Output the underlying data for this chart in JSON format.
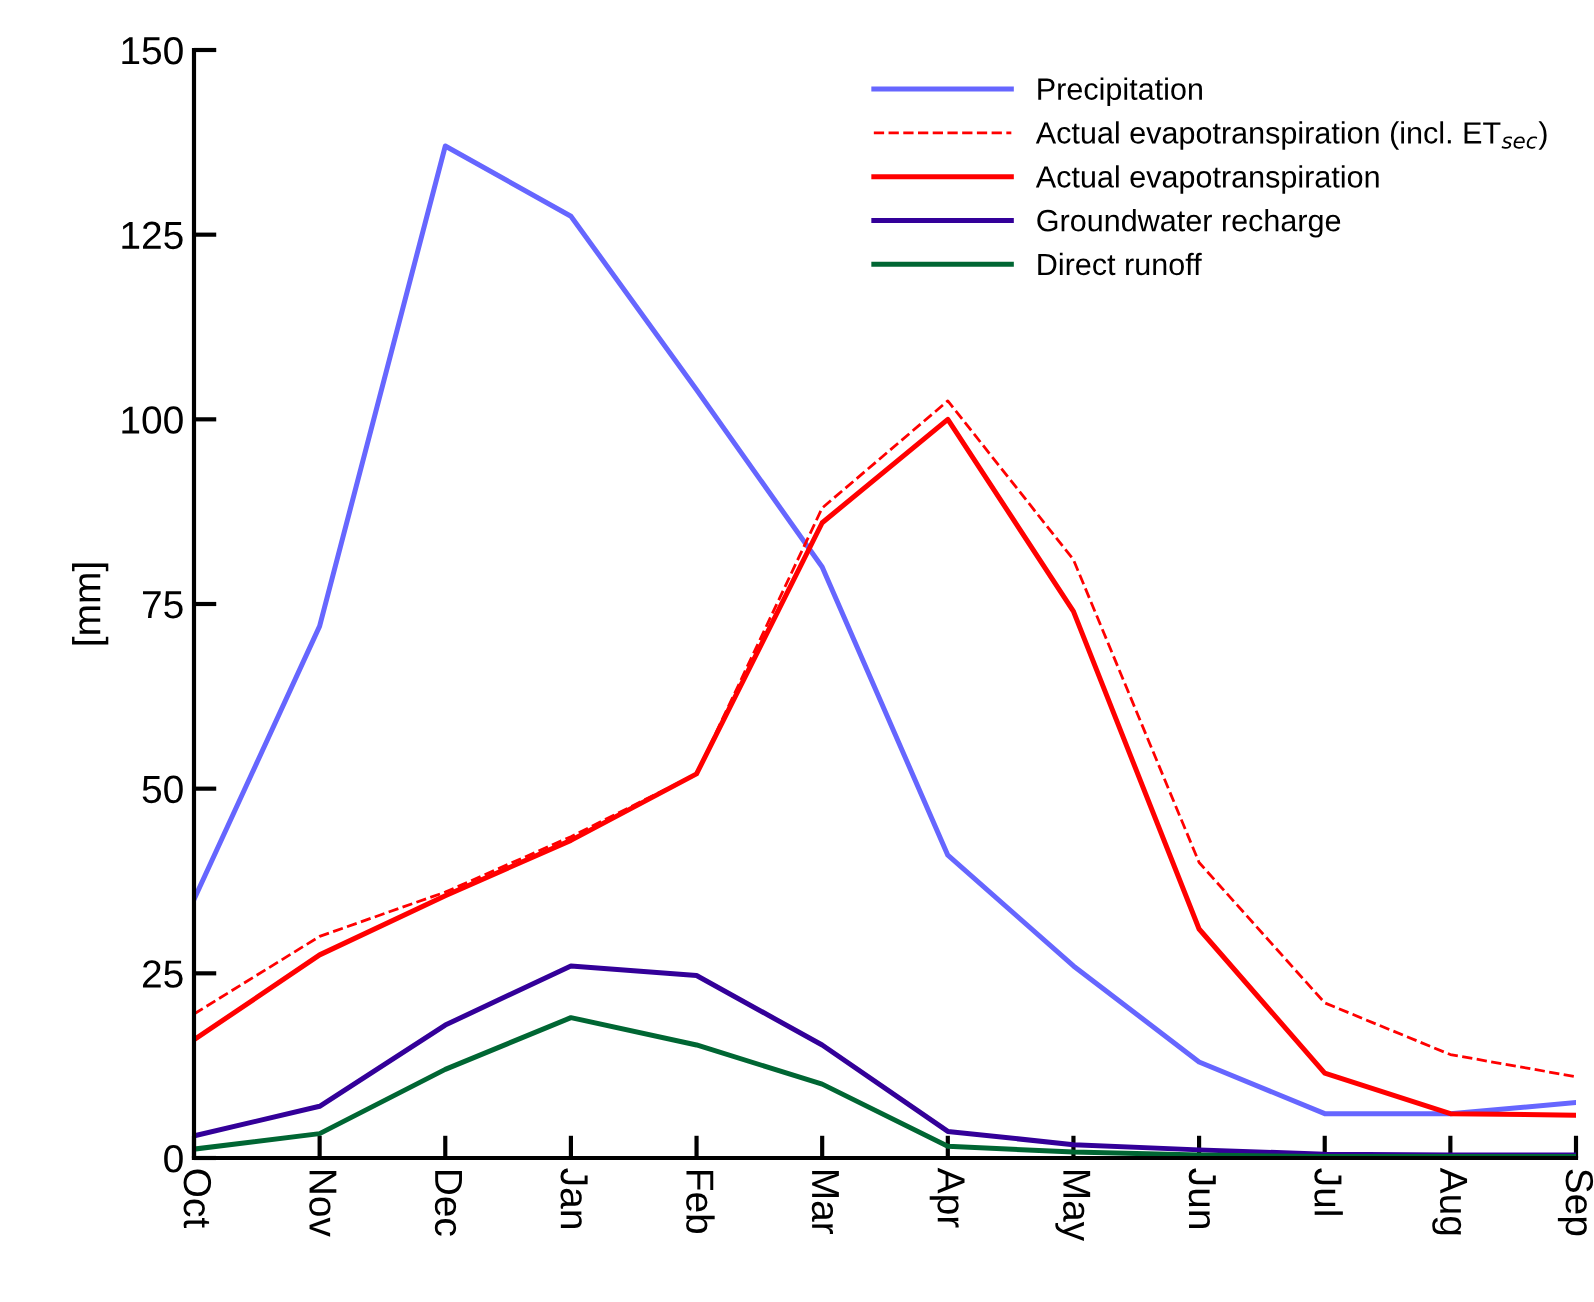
{
  "chart_data": {
    "type": "line",
    "ylabel": "[mm]",
    "categories": [
      "Oct",
      "Nov",
      "Dec",
      "Jan",
      "Feb",
      "Mar",
      "Apr",
      "May",
      "Jun",
      "Jul",
      "Aug",
      "Sep"
    ],
    "ylim": [
      0,
      150
    ],
    "yticks": [
      0,
      25,
      50,
      75,
      100,
      125,
      150
    ],
    "grid": false,
    "legend": "top right",
    "marker": "none",
    "series": [
      {
        "name": "Precipitation",
        "color": "#6666ff",
        "line_style": "solid",
        "values": [
          35,
          72,
          137,
          127.5,
          104,
          80,
          41,
          26,
          13,
          6,
          6,
          7.5
        ]
      },
      {
        "name": "Actual evapotranspiration (incl. ET$_{sec}$)",
        "color": "#ff0000",
        "line_style": "dashed",
        "values": [
          19.5,
          30,
          36,
          43.5,
          52,
          88,
          102.5,
          81,
          40,
          21,
          14,
          11
        ]
      },
      {
        "name": "Actual evapotranspiration",
        "color": "#ff0000",
        "line_style": "solid",
        "values": [
          16,
          27.5,
          35.5,
          43,
          52,
          86,
          100,
          74,
          31,
          11.5,
          6,
          5.8
        ]
      },
      {
        "name": "Groundwater recharge",
        "color": "#330099",
        "line_style": "solid",
        "values": [
          3,
          7,
          18,
          26,
          24.7,
          15.3,
          3.6,
          1.8,
          1.1,
          0.5,
          0.4,
          0.4
        ]
      },
      {
        "name": "Direct runoff",
        "color": "#006633",
        "line_style": "solid",
        "values": [
          1.2,
          3.3,
          12,
          19,
          15.3,
          10,
          1.6,
          0.8,
          0.4,
          0.2,
          0.2,
          0.2
        ]
      }
    ]
  }
}
